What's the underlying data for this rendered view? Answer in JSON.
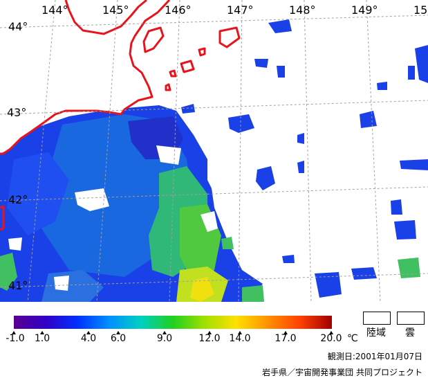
{
  "map": {
    "lon_labels": [
      "144°",
      "145°",
      "146°",
      "147°",
      "148°",
      "149°",
      "15"
    ],
    "lat_labels": [
      "44°",
      "43°",
      "42°",
      "41°"
    ],
    "colors": {
      "coastline": "#e8141c",
      "land": "#ffffff",
      "cloud": "#ffffff",
      "grid": "#a0a0a0",
      "sst_cold": "#2030e0",
      "sst_mid": "#1a6ae0",
      "sst_warm": "#40c060",
      "sst_hot": "#e0e020"
    }
  },
  "legend": {
    "scale_colors": [
      "#5a0090",
      "#3000c8",
      "#0030ff",
      "#0090ff",
      "#00d0c0",
      "#20d020",
      "#a0e000",
      "#ffe000",
      "#ff9000",
      "#ff4000",
      "#a00000"
    ],
    "ticks": [
      "-1.0",
      "1.0",
      "4.0",
      "6.0",
      "9.0",
      "12.0",
      "14.0",
      "17.0",
      "20.0"
    ],
    "unit": "℃",
    "land_label": "陸域",
    "cloud_label": "雲"
  },
  "observation_date": "観測日:2001年01月07日",
  "credit": "岩手県／宇宙開発事業団 共同プロジェクト"
}
